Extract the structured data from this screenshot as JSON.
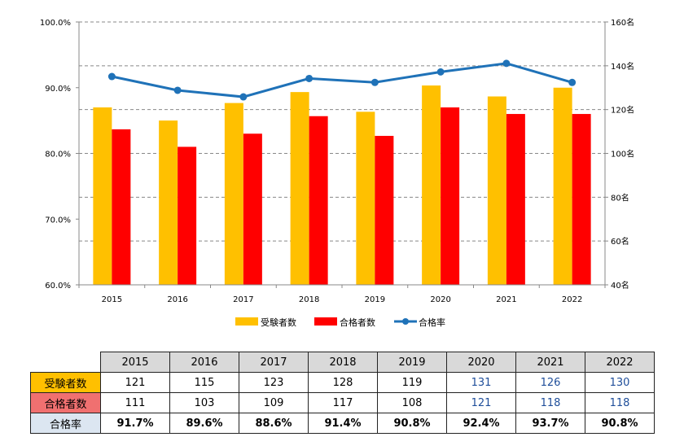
{
  "chart_data": {
    "type": "bar+line",
    "categories": [
      "2015",
      "2016",
      "2017",
      "2018",
      "2019",
      "2020",
      "2021",
      "2022"
    ],
    "series": [
      {
        "name": "受験者数",
        "type": "bar",
        "axis": "right",
        "values": [
          121,
          115,
          123,
          128,
          119,
          131,
          126,
          130
        ]
      },
      {
        "name": "合格者数",
        "type": "bar",
        "axis": "right",
        "values": [
          111,
          103,
          109,
          117,
          108,
          121,
          118,
          118
        ]
      },
      {
        "name": "合格率",
        "type": "line",
        "axis": "left",
        "values": [
          91.7,
          89.6,
          88.6,
          91.4,
          90.8,
          92.4,
          93.7,
          90.8
        ]
      }
    ],
    "y_left": {
      "min": 60,
      "max": 100,
      "ticks": [
        "100.0%",
        "90.0%",
        "80.0%",
        "70.0%",
        "60.0%"
      ]
    },
    "y_right": {
      "min": 40,
      "max": 160,
      "ticks": [
        "160名",
        "140名",
        "120名",
        "100名",
        "80名",
        "60名",
        "40名"
      ]
    },
    "grid": "dashed horizontal",
    "legend_position": "bottom",
    "colors": {
      "exam": "#ffc000",
      "pass": "#ff0000",
      "rate": "#1f72b8"
    }
  },
  "table": {
    "years": [
      "2015",
      "2016",
      "2017",
      "2018",
      "2019",
      "2020",
      "2021",
      "2022"
    ],
    "rows": [
      {
        "label": "受験者数",
        "color": "#ffc000",
        "values": [
          "121",
          "115",
          "123",
          "128",
          "119",
          "131",
          "126",
          "130"
        ]
      },
      {
        "label": "合格者数",
        "color": "#f07070",
        "values": [
          "111",
          "103",
          "109",
          "117",
          "108",
          "121",
          "118",
          "118"
        ]
      },
      {
        "label": "合格率",
        "color": "#dce6f1",
        "values": [
          "91.7%",
          "89.6%",
          "88.6%",
          "91.4%",
          "90.8%",
          "92.4%",
          "93.7%",
          "90.8%"
        ]
      }
    ]
  }
}
